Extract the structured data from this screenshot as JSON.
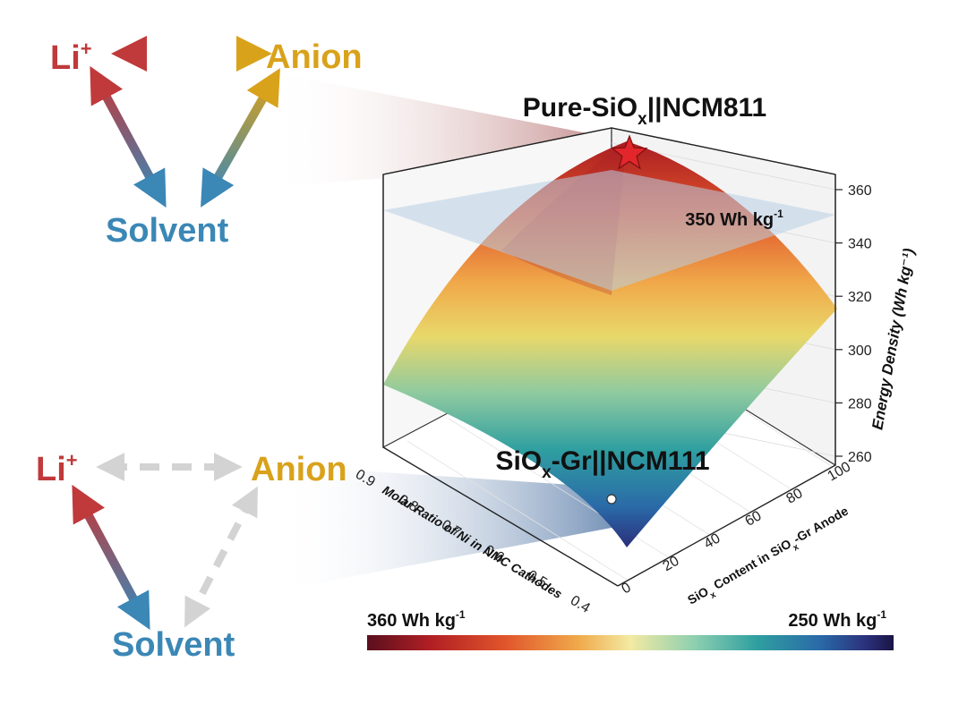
{
  "top_triangle": {
    "li_label": "Li",
    "li_sup": "+",
    "anion_label": "Anion",
    "solvent_label": "Solvent"
  },
  "bottom_triangle": {
    "li_label": "Li",
    "li_sup": "+",
    "anion_label": "Anion",
    "solvent_label": "Solvent"
  },
  "annotations": {
    "top_prefix": "Pure-SiO",
    "top_sub": "x",
    "top_suffix": "||NCM811",
    "bottom_prefix": "SiO",
    "bottom_sub": "x",
    "bottom_suffix": "-Gr||NCM111",
    "threshold_text": "350 Wh kg",
    "threshold_sup": "-1"
  },
  "colorbar": {
    "left_text": "360 Wh kg",
    "left_sup": "-1",
    "right_text": "250 Wh kg",
    "right_sup": "-1",
    "colors": [
      "#5a0f1e",
      "#b11f24",
      "#e0542b",
      "#f0a94a",
      "#f3eaa2",
      "#8fd0b0",
      "#2f9fa0",
      "#2a6aa8",
      "#2b2f7a",
      "#1a1545"
    ]
  },
  "colors": {
    "li": "#c0393b",
    "anion": "#d9a21b",
    "solvent": "#3b87b6",
    "dashed": "#d3d3d3",
    "star": "#e3262b",
    "plane": "#b8cfe6"
  },
  "chart_data": {
    "type": "surface",
    "title": "",
    "xlabel": "Molar Ratio of Ni in NMC Cathodes",
    "ylabel": "SiO_x Content in SiO_x-Gr Anode",
    "zlabel": "Energy Density (Wh kg⁻¹)",
    "x_ticks": [
      "0.4",
      "0.5",
      "0.6",
      "0.7",
      "0.8",
      "0.9"
    ],
    "y_ticks": [
      "0",
      "20",
      "40",
      "60",
      "80",
      "100"
    ],
    "z_ticks": [
      "260",
      "280",
      "300",
      "320",
      "340",
      "360"
    ],
    "zlim": [
      255,
      365
    ],
    "threshold_plane": 350,
    "corners": [
      {
        "label": "Pure-SiOx||NCM811",
        "x": 0.8,
        "y": 100,
        "z": 363
      },
      {
        "label": "SiOx-Gr||NCM111",
        "x": 0.33,
        "y": 0,
        "z": 252
      }
    ],
    "surface_grid": {
      "x": [
        0.33,
        0.45,
        0.57,
        0.69,
        0.8
      ],
      "y": [
        0,
        25,
        50,
        75,
        100
      ],
      "z": [
        [
          252,
          268,
          282,
          294,
          303
        ],
        [
          266,
          281,
          295,
          306,
          315
        ],
        [
          280,
          295,
          308,
          319,
          328
        ],
        [
          294,
          308,
          321,
          332,
          341
        ],
        [
          306,
          320,
          333,
          344,
          363
        ]
      ]
    }
  }
}
